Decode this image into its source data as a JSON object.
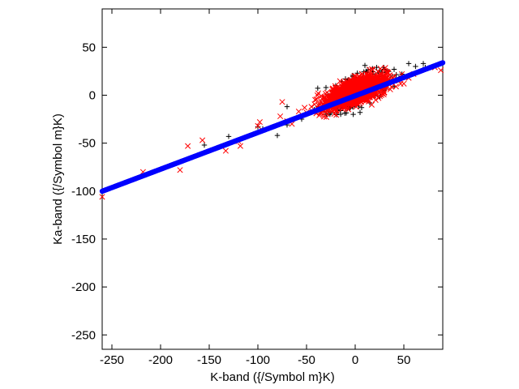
{
  "chart_data": {
    "type": "scatter",
    "title": "",
    "xlabel": "K-band ({/Symbol m}K)",
    "ylabel": "Ka-band ({/Symbol m}K)",
    "xlim": [
      -260,
      90
    ],
    "ylim": [
      -265,
      90
    ],
    "xticks": [
      -250,
      -200,
      -150,
      -100,
      -50,
      0,
      50
    ],
    "yticks": [
      50,
      0,
      -50,
      -100,
      -150,
      -200,
      -250
    ],
    "grid": false,
    "legend": "none",
    "series": [
      {
        "marker": "plus",
        "color": "#000000",
        "points": [
          [
            10,
            31
          ],
          [
            22,
            29
          ],
          [
            30,
            27
          ],
          [
            40,
            27
          ],
          [
            55,
            33
          ],
          [
            62,
            30
          ],
          [
            70,
            33
          ],
          [
            72,
            29
          ],
          [
            48,
            22
          ],
          [
            38,
            19
          ],
          [
            27,
            24
          ],
          [
            18,
            22
          ],
          [
            -5,
            15
          ],
          [
            -10,
            17
          ],
          [
            -20,
            10
          ],
          [
            -30,
            8
          ],
          [
            -15,
            -5
          ],
          [
            -5,
            -10
          ],
          [
            5,
            -18
          ],
          [
            -2,
            -20
          ],
          [
            -30,
            -17
          ],
          [
            -42,
            -15
          ],
          [
            -70,
            -31
          ],
          [
            -80,
            -42
          ],
          [
            -95,
            -35
          ],
          [
            -100,
            -33
          ],
          [
            -130,
            -43
          ],
          [
            -155,
            -52
          ],
          [
            -70,
            -12
          ],
          [
            -55,
            -25
          ],
          [
            25,
            12
          ],
          [
            35,
            15
          ],
          [
            8,
            -3
          ],
          [
            -12,
            3
          ],
          [
            15,
            -8
          ],
          [
            0,
            12
          ],
          [
            30,
            5
          ],
          [
            -25,
            -2
          ],
          [
            45,
            18
          ],
          [
            20,
            20
          ],
          [
            -38,
            -12
          ],
          [
            -8,
            -14
          ],
          [
            3,
            18
          ],
          [
            12,
            24
          ],
          [
            40,
            9
          ],
          [
            -50,
            -20
          ],
          [
            -18,
            -12
          ],
          [
            28,
            24
          ]
        ]
      },
      {
        "marker": "x",
        "color": "#ff0000",
        "points": [
          [
            -260,
            -106
          ],
          [
            -218,
            -80
          ],
          [
            -180,
            -78
          ],
          [
            -172,
            -53
          ],
          [
            -157,
            -47
          ],
          [
            -133,
            -58
          ],
          [
            -120,
            -48
          ],
          [
            -118,
            -53
          ],
          [
            -100,
            -32
          ],
          [
            -98,
            -28
          ],
          [
            -75,
            -7
          ],
          [
            -77,
            -22
          ],
          [
            -70,
            -27
          ],
          [
            -65,
            -30
          ],
          [
            -58,
            -17
          ],
          [
            -52,
            -13
          ],
          [
            -45,
            -12
          ],
          [
            -40,
            -19
          ],
          [
            -38,
            -16
          ],
          [
            -35,
            -11
          ],
          [
            -30,
            -6
          ],
          [
            -28,
            -15
          ],
          [
            -25,
            -8
          ],
          [
            -22,
            -1
          ],
          [
            -20,
            -14
          ],
          [
            -18,
            -5
          ],
          [
            -15,
            0
          ],
          [
            -14,
            10
          ],
          [
            -12,
            4
          ],
          [
            -10,
            -3
          ],
          [
            -8,
            8
          ],
          [
            -6,
            -6
          ],
          [
            -5,
            12
          ],
          [
            -3,
            2
          ],
          [
            -2,
            -2
          ],
          [
            0,
            14
          ],
          [
            0,
            -8
          ],
          [
            2,
            5
          ],
          [
            3,
            -1
          ],
          [
            4,
            10
          ],
          [
            5,
            18
          ],
          [
            6,
            -4
          ],
          [
            8,
            3
          ],
          [
            9,
            12
          ],
          [
            10,
            7
          ],
          [
            11,
            -6
          ],
          [
            12,
            16
          ],
          [
            13,
            1
          ],
          [
            14,
            9
          ],
          [
            15,
            20
          ],
          [
            16,
            4
          ],
          [
            18,
            -2
          ],
          [
            19,
            11
          ],
          [
            20,
            6
          ],
          [
            22,
            15
          ],
          [
            23,
            1
          ],
          [
            25,
            8
          ],
          [
            26,
            18
          ],
          [
            28,
            12
          ],
          [
            30,
            3
          ],
          [
            32,
            10
          ],
          [
            35,
            17
          ],
          [
            36,
            6
          ],
          [
            38,
            13
          ],
          [
            40,
            20
          ],
          [
            42,
            9
          ],
          [
            45,
            15
          ],
          [
            48,
            22
          ],
          [
            50,
            12
          ],
          [
            55,
            18
          ],
          [
            60,
            22
          ],
          [
            -1,
            20
          ],
          [
            7,
            22
          ],
          [
            -4,
            16
          ],
          [
            -16,
            6
          ],
          [
            -26,
            -4
          ],
          [
            -33,
            -9
          ],
          [
            -9,
            14
          ],
          [
            1,
            -12
          ],
          [
            17,
            -10
          ],
          [
            24,
            -3
          ],
          [
            -12,
            -10
          ],
          [
            5,
            0
          ],
          [
            -7,
            2
          ],
          [
            11,
            3
          ],
          [
            29,
            6
          ],
          [
            33,
            15
          ],
          [
            21,
            -5
          ],
          [
            -19,
            -8
          ],
          [
            2,
            8
          ],
          [
            9,
            -2
          ],
          [
            14,
            2
          ],
          [
            27,
            0
          ],
          [
            -23,
            -11
          ],
          [
            -11,
            13
          ],
          [
            6,
            15
          ],
          [
            16,
            14
          ],
          [
            -36,
            -20
          ],
          [
            -44,
            -17
          ],
          [
            -50,
            -18
          ],
          [
            82,
            29
          ],
          [
            88,
            26
          ],
          [
            -2,
            5
          ]
        ]
      },
      {
        "marker": "dot",
        "color": "#0000ff",
        "line": {
          "slope": 0.3829,
          "intercept": -0.6,
          "x_range": [
            -260,
            90
          ]
        }
      }
    ]
  }
}
